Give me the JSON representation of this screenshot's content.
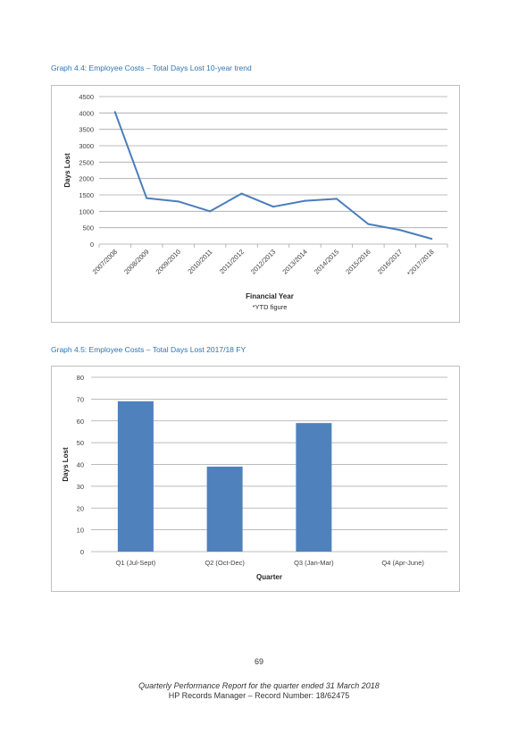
{
  "graph1": {
    "heading": "Graph 4.4: Employee Costs – Total Days Lost 10-year trend",
    "footnote": "*YTD figure",
    "chart_data": {
      "type": "line",
      "title": "",
      "xlabel": "Financial Year",
      "ylabel": "Days Lost",
      "ylim": [
        0,
        4500
      ],
      "yticks": [
        "0",
        "500",
        "1000",
        "1500",
        "2000",
        "2500",
        "3000",
        "3500",
        "4000",
        "4500"
      ],
      "categories": [
        "2007/2008",
        "2008/2009",
        "2009/2010",
        "2010/2011",
        "2011/2012",
        "2012/2013",
        "2013/2014",
        "2014/2015",
        "2015/2016",
        "2016/2017",
        "*2017/2018"
      ],
      "values": [
        4030,
        1400,
        1300,
        1000,
        1540,
        1140,
        1320,
        1380,
        610,
        430,
        160
      ],
      "grid": true,
      "legend": "none",
      "color": "#4a7ebb"
    }
  },
  "graph2": {
    "heading": "Graph 4.5: Employee Costs – Total Days Lost 2017/18 FY",
    "chart_data": {
      "type": "bar",
      "title": "",
      "xlabel": "Quarter",
      "ylabel": "Days Lost",
      "ylim": [
        0,
        80
      ],
      "yticks": [
        "0",
        "10",
        "20",
        "30",
        "40",
        "50",
        "60",
        "70",
        "80"
      ],
      "categories": [
        "Q1 (Jul-Sept)",
        "Q2 (Oct-Dec)",
        "Q3 (Jan-Mar)",
        "Q4 (Apr-June)"
      ],
      "values": [
        69,
        39,
        59,
        null
      ],
      "grid": true,
      "legend": "none",
      "color": "#4f81bd"
    }
  },
  "footer": {
    "page_number": "69",
    "line1": "Quarterly Performance Report for the quarter ended 31 March 2018",
    "line2": "HP Records Manager – Record Number: 18/62475"
  }
}
